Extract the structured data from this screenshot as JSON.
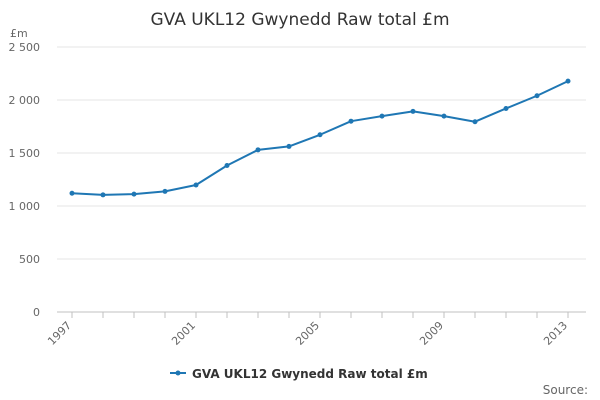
{
  "chart_data": {
    "type": "line",
    "title": "GVA UKL12 Gwynedd Raw total £m",
    "unit_label": "£m",
    "xlabel": "",
    "ylabel": "",
    "x": [
      1997,
      1998,
      1999,
      2000,
      2001,
      2002,
      2003,
      2004,
      2005,
      2006,
      2007,
      2008,
      2009,
      2010,
      2011,
      2012,
      2013
    ],
    "x_tick_labels": [
      "1997",
      "2001",
      "2005",
      "2009",
      "2013"
    ],
    "y_tick_labels": [
      "0",
      "500",
      "1 000",
      "1 500",
      "2 000",
      "2 500"
    ],
    "ylim": [
      0,
      2500
    ],
    "grid": true,
    "legend_position": "bottom",
    "series": [
      {
        "name": "GVA UKL12 Gwynedd Raw total £m",
        "color": "#1f77b4",
        "values": [
          1120,
          1105,
          1112,
          1138,
          1198,
          1382,
          1530,
          1562,
          1672,
          1800,
          1848,
          1893,
          1848,
          1795,
          1920,
          2040,
          2178
        ]
      }
    ],
    "source_label": "Source:"
  }
}
